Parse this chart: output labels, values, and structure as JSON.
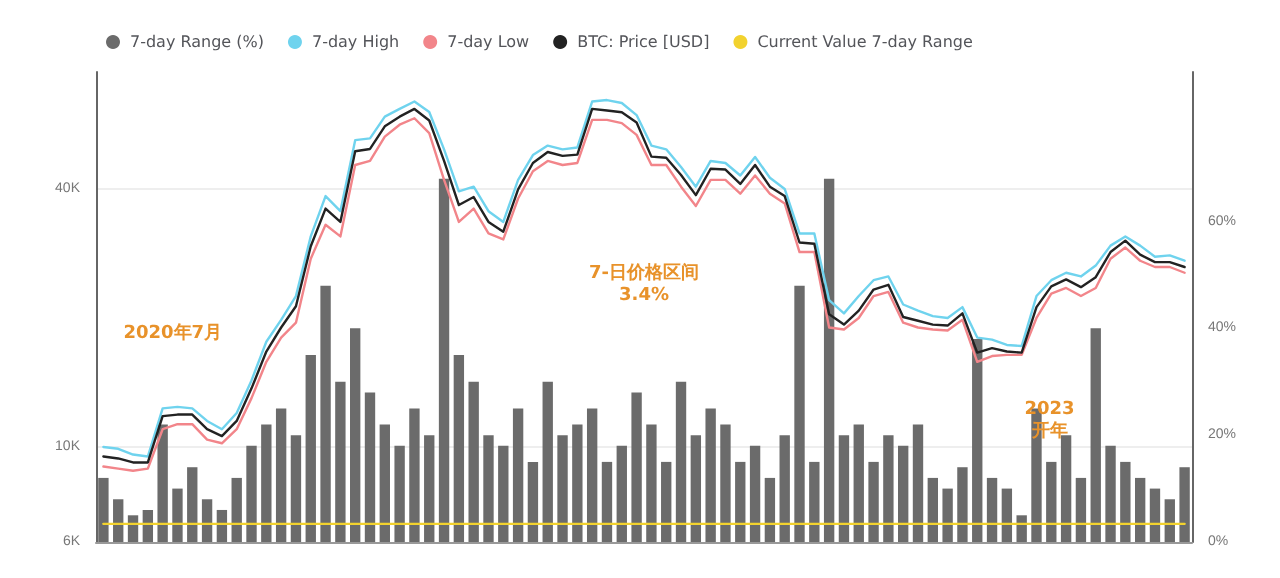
{
  "chart_data": {
    "type": "line",
    "log": "y",
    "grid": "y",
    "legend": "top left",
    "tick_labels": "y",
    "categories": [
      null,
      null,
      null,
      null,
      null,
      null,
      null,
      null,
      null,
      null,
      null,
      null,
      null,
      null,
      null,
      null,
      null,
      null,
      null,
      null,
      null,
      null,
      null,
      null,
      null,
      null,
      null,
      null,
      null,
      null,
      null,
      null,
      null,
      null,
      null,
      null,
      null,
      null,
      null,
      null,
      null,
      null,
      null,
      null,
      null,
      null,
      null,
      null,
      null,
      null,
      null,
      null,
      null,
      null,
      null,
      null,
      null,
      null,
      null,
      null,
      null,
      null,
      null,
      null,
      null,
      null,
      null,
      null,
      null,
      null,
      null,
      null,
      null,
      null
    ],
    "ylim": [
      6000,
      75000
    ],
    "yticks": [
      {
        "value": 6000,
        "label": "6K"
      },
      {
        "value": 10000,
        "label": "10K"
      },
      {
        "value": 40000,
        "label": "40K"
      }
    ],
    "y2lim": [
      0,
      88
    ],
    "y2ticks": [
      {
        "value": 0,
        "label": "0%"
      },
      {
        "value": 20,
        "label": "20%"
      },
      {
        "value": 40,
        "label": "40%"
      },
      {
        "value": 60,
        "label": "60%"
      }
    ],
    "series": [
      {
        "name": "7-day Range (%)",
        "type": "bar",
        "axis": "y2",
        "color": "#6b6b6b",
        "values": [
          12,
          8,
          5,
          6,
          22,
          10,
          14,
          8,
          6,
          12,
          18,
          22,
          25,
          20,
          35,
          48,
          30,
          40,
          28,
          22,
          18,
          25,
          20,
          68,
          35,
          30,
          20,
          18,
          25,
          15,
          30,
          20,
          22,
          25,
          15,
          18,
          28,
          22,
          15,
          30,
          20,
          25,
          22,
          15,
          18,
          12,
          20,
          48,
          15,
          68,
          20,
          22,
          15,
          20,
          18,
          22,
          12,
          10,
          14,
          38,
          12,
          10,
          5,
          25,
          15,
          20,
          12,
          40,
          18,
          15,
          12,
          10,
          8,
          14
        ]
      },
      {
        "name": "7-day High",
        "color": "#6fd3ee",
        "values": [
          10000,
          9900,
          9600,
          9500,
          12300,
          12400,
          12300,
          11500,
          11000,
          12000,
          14300,
          17600,
          19800,
          22500,
          31000,
          38500,
          35500,
          52000,
          52500,
          59000,
          61500,
          64000,
          60500,
          49500,
          39500,
          40500,
          35500,
          33500,
          42000,
          48000,
          50500,
          49500,
          50000,
          64000,
          64500,
          63500,
          59500,
          50500,
          49500,
          45000,
          40500,
          46500,
          46000,
          43000,
          47500,
          42500,
          40000,
          31500,
          31500,
          22000,
          20500,
          22500,
          24500,
          25000,
          21500,
          20800,
          20200,
          20000,
          21200,
          18000,
          17800,
          17300,
          17200,
          22500,
          24500,
          25500,
          25000,
          26500,
          29500,
          31000,
          29500,
          27800,
          28000,
          27200
        ]
      },
      {
        "name": "7-day Low",
        "color": "#f2858a",
        "values": [
          9000,
          8900,
          8800,
          8900,
          11000,
          11300,
          11300,
          10400,
          10200,
          11000,
          13000,
          15800,
          18000,
          19500,
          27500,
          33000,
          31000,
          45500,
          46500,
          53000,
          56500,
          58500,
          54000,
          42000,
          33500,
          36000,
          31500,
          30500,
          38000,
          44000,
          46500,
          45500,
          46000,
          58000,
          58000,
          57000,
          53500,
          45500,
          45500,
          40500,
          36500,
          42000,
          42000,
          39000,
          43000,
          39000,
          37000,
          28500,
          28500,
          19000,
          18800,
          20000,
          22500,
          23000,
          19500,
          19000,
          18800,
          18700,
          19800,
          15800,
          16300,
          16400,
          16400,
          20000,
          22800,
          23500,
          22500,
          23500,
          27500,
          29200,
          27200,
          26300,
          26300,
          25500
        ]
      },
      {
        "name": "BTC: Price [USD]",
        "color": "#222222",
        "values": [
          9500,
          9400,
          9200,
          9200,
          11800,
          11900,
          11900,
          11000,
          10600,
          11500,
          13700,
          16700,
          19000,
          21300,
          29400,
          36000,
          33500,
          49000,
          49600,
          56000,
          59000,
          61500,
          57800,
          46500,
          36700,
          38300,
          33500,
          31800,
          39900,
          46000,
          48800,
          47800,
          48100,
          61500,
          61000,
          60400,
          57200,
          47600,
          47300,
          43100,
          38700,
          44600,
          44400,
          41100,
          45500,
          40500,
          38500,
          30000,
          29800,
          20400,
          19300,
          20800,
          23300,
          23900,
          20100,
          19700,
          19300,
          19200,
          20500,
          16600,
          17000,
          16700,
          16600,
          21200,
          23700,
          24600,
          23600,
          24900,
          28500,
          30300,
          28100,
          27000,
          27000,
          26300
        ]
      },
      {
        "name": "Current Value 7-day Range",
        "axis": "y2",
        "color": "#f2d22e",
        "values": [
          3.4,
          3.4,
          3.4,
          3.4,
          3.4,
          3.4,
          3.4,
          3.4,
          3.4,
          3.4,
          3.4,
          3.4,
          3.4,
          3.4,
          3.4,
          3.4,
          3.4,
          3.4,
          3.4,
          3.4,
          3.4,
          3.4,
          3.4,
          3.4,
          3.4,
          3.4,
          3.4,
          3.4,
          3.4,
          3.4,
          3.4,
          3.4,
          3.4,
          3.4,
          3.4,
          3.4,
          3.4,
          3.4,
          3.4,
          3.4,
          3.4,
          3.4,
          3.4,
          3.4,
          3.4,
          3.4,
          3.4,
          3.4,
          3.4,
          3.4,
          3.4,
          3.4,
          3.4,
          3.4,
          3.4,
          3.4,
          3.4,
          3.4,
          3.4,
          3.4,
          3.4,
          3.4,
          3.4,
          3.4,
          3.4,
          3.4,
          3.4,
          3.4,
          3.4,
          3.4,
          3.4,
          3.4,
          3.4,
          3.4
        ]
      }
    ],
    "annotations": [
      "2020年7月",
      "7-日价格区间\n3.4%",
      "2023\n开年"
    ]
  }
}
